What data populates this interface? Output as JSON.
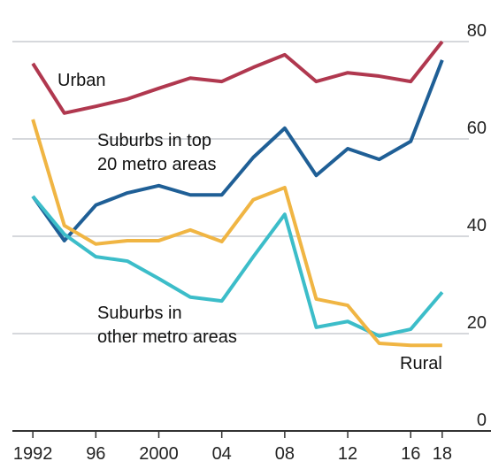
{
  "chart_data": {
    "type": "line",
    "x": [
      1992,
      1994,
      1996,
      1998,
      2000,
      2002,
      2004,
      2006,
      2008,
      2010,
      2012,
      2014,
      2016,
      2018
    ],
    "series": [
      {
        "name": "Urban",
        "color": "#b0384f",
        "values": [
          75.5,
          65.3,
          66.7,
          68.2,
          70.4,
          72.5,
          71.8,
          74.7,
          77.3,
          71.8,
          73.6,
          72.9,
          71.8,
          80
        ]
      },
      {
        "name": "Suburbs in top\n20 metro areas",
        "color": "#1f5f96",
        "values": [
          48.2,
          39.1,
          46.4,
          48.9,
          50.4,
          48.5,
          48.5,
          56.2,
          62.2,
          52.5,
          58,
          55.8,
          59.5,
          76.2
        ]
      },
      {
        "name": "Suburbs in\nother metro areas",
        "color": "#3cbdc9",
        "values": [
          48.2,
          40.4,
          35.8,
          34.9,
          31.3,
          27.5,
          26.7,
          35.8,
          44.5,
          21.3,
          22.5,
          19.5,
          20.9,
          28.5
        ]
      },
      {
        "name": "Rural",
        "color": "#f0b543",
        "values": [
          64,
          42.2,
          38.4,
          39.1,
          39.1,
          41.3,
          38.9,
          47.5,
          50,
          27.1,
          25.8,
          18,
          17.6,
          17.6
        ]
      }
    ],
    "xlim": [
      1990.7,
      2021.1
    ],
    "xticks": [
      1992,
      {
        "value": 1996,
        "label": "96"
      },
      2000,
      {
        "value": 2004,
        "label": "04"
      },
      {
        "value": 2008,
        "label": "08"
      },
      {
        "value": 2012,
        "label": "12"
      },
      {
        "value": 2016,
        "label": "16"
      },
      {
        "value": 2018,
        "label": "18"
      }
    ],
    "ylim": [
      0,
      80
    ],
    "yticks": [
      0,
      20,
      40,
      60,
      80
    ],
    "grid": true
  }
}
